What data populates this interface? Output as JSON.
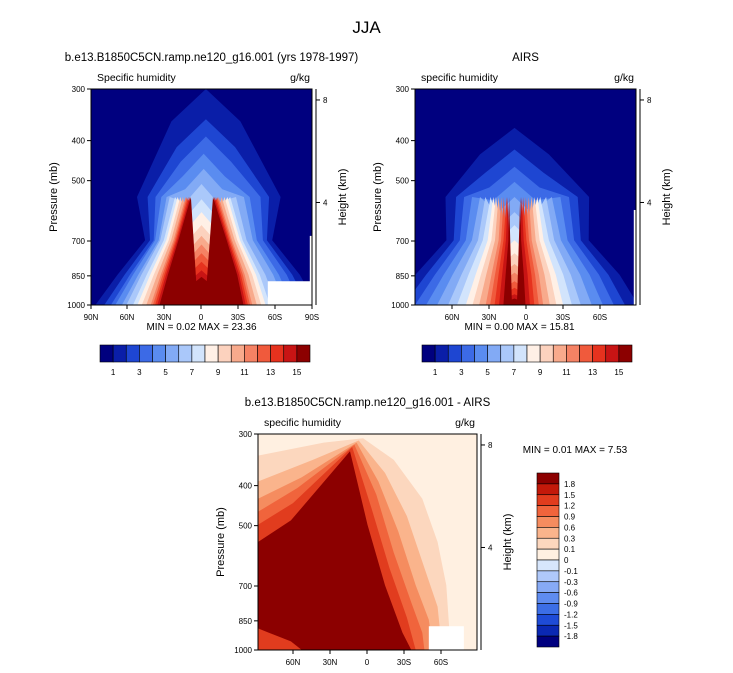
{
  "page": {
    "title": "JJA"
  },
  "blue_red": [
    "#00007f",
    "#0a1ea8",
    "#1e46d2",
    "#3c6ae6",
    "#5a8cf0",
    "#82aaf5",
    "#aac8fa",
    "#d2e4fc",
    "#fff0e6",
    "#fcd2be",
    "#f8aa8c",
    "#f58264",
    "#f05a3c",
    "#e6321e",
    "#c81414",
    "#8c0000"
  ],
  "diff_colors": [
    "#00007f",
    "#0a28b4",
    "#1e4bd7",
    "#3c6ee6",
    "#5f8cf0",
    "#87aaf5",
    "#afc8fa",
    "#d7e6fc",
    "#fff0e1",
    "#fcd7be",
    "#fab48c",
    "#f58c5f",
    "#f0643c",
    "#e13c1e",
    "#c3190a",
    "#8c0000"
  ],
  "panels": [
    {
      "id": "model",
      "title": "b.e13.B1850C5CN.ramp.ne120_g16.001 (yrs 1978-1997)",
      "left_label": "Specific humidity",
      "right_label": "g/kg",
      "x_ticks": [
        "90N",
        "60N",
        "30N",
        "0",
        "30S",
        "60S",
        "90S"
      ],
      "y_ticks": [
        "300",
        "400",
        "500",
        "700",
        "850",
        "1000"
      ],
      "y_label": "Pressure (mb)",
      "y2_ticks": [
        "8",
        "4"
      ],
      "y2_label": "Height (km)",
      "stats": "MIN =  0.02  MAX = 23.36"
    },
    {
      "id": "obs",
      "title": "AIRS",
      "left_label": "specific humidity",
      "right_label": "g/kg",
      "x_ticks": [
        "60N",
        "30N",
        "0",
        "30S",
        "60S"
      ],
      "y_ticks": [
        "300",
        "400",
        "500",
        "700",
        "850",
        "1000"
      ],
      "y_label": "Pressure (mb)",
      "y2_ticks": [
        "8",
        "4"
      ],
      "y2_label": "Height (km)",
      "stats": "MIN =  0.00  MAX = 15.81"
    },
    {
      "id": "diff",
      "title": "b.e13.B1850C5CN.ramp.ne120_g16.001 - AIRS",
      "left_label": "specific humidity",
      "right_label": "g/kg",
      "x_ticks": [
        "60N",
        "30N",
        "0",
        "30S",
        "60S"
      ],
      "y_ticks": [
        "300",
        "400",
        "500",
        "700",
        "850",
        "1000"
      ],
      "y_label": "Pressure (mb)",
      "y2_ticks": [
        "8",
        "4"
      ],
      "y2_label": "Height (km)",
      "stats": "MIN =  0.01  MAX =  7.53"
    }
  ],
  "colorbars": [
    {
      "id": "shared-horizontal",
      "labels": [
        "1",
        "3",
        "5",
        "7",
        "9",
        "11",
        "13",
        "15"
      ]
    },
    {
      "id": "diff-vertical",
      "labels": [
        "1.8",
        "1.5",
        "1.2",
        "0.9",
        "0.6",
        "0.3",
        "0.1",
        "0",
        "-0.1",
        "-0.3",
        "-0.6",
        "-0.9",
        "-1.2",
        "-1.5",
        "-1.8"
      ]
    }
  ],
  "chart_data": [
    {
      "type": "heatmap",
      "title": "b.e13.B1850C5CN.ramp.ne120_g16.001 (yrs 1978-1997)",
      "left_label": "Specific humidity",
      "units": "g/kg",
      "xlabel": "",
      "ylabel": "Pressure (mb)",
      "y2label": "Height (km)",
      "x": [
        "90N",
        "60N",
        "30N",
        "0",
        "30S",
        "60S",
        "90S"
      ],
      "xlim": [
        90,
        -90
      ],
      "ylim": [
        1000,
        300
      ],
      "y_scale": "log",
      "contour_levels": [
        1,
        2,
        3,
        4,
        5,
        6,
        7,
        8,
        9,
        10,
        11,
        12,
        13,
        14,
        15
      ],
      "min": 0.02,
      "max": 23.36
    },
    {
      "type": "heatmap",
      "title": "AIRS",
      "left_label": "specific humidity",
      "units": "g/kg",
      "xlabel": "",
      "ylabel": "Pressure (mb)",
      "y2label": "Height (km)",
      "x": [
        "60N",
        "30N",
        "0",
        "30S",
        "60S"
      ],
      "ylim": [
        1000,
        300
      ],
      "y_scale": "log",
      "contour_levels": [
        1,
        2,
        3,
        4,
        5,
        6,
        7,
        8,
        9,
        10,
        11,
        12,
        13,
        14,
        15
      ],
      "min": 0.0,
      "max": 15.81
    },
    {
      "type": "heatmap",
      "title": "b.e13.B1850C5CN.ramp.ne120_g16.001 - AIRS",
      "left_label": "specific humidity",
      "units": "g/kg",
      "xlabel": "",
      "ylabel": "Pressure (mb)",
      "y2label": "Height (km)",
      "x": [
        "60N",
        "30N",
        "0",
        "30S",
        "60S"
      ],
      "ylim": [
        1000,
        300
      ],
      "y_scale": "log",
      "contour_levels": [
        -1.8,
        -1.5,
        -1.2,
        -0.9,
        -0.6,
        -0.3,
        -0.1,
        0,
        0.1,
        0.3,
        0.6,
        0.9,
        1.2,
        1.5,
        1.8
      ],
      "min": 0.01,
      "max": 7.53
    }
  ]
}
